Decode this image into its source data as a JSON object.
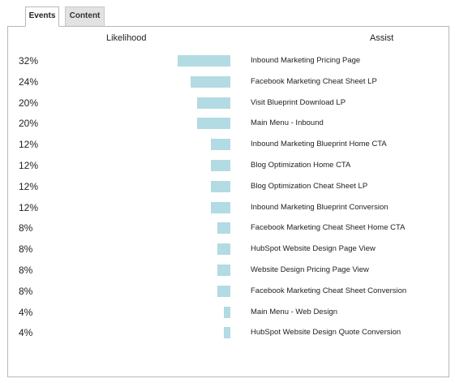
{
  "tabs": [
    {
      "label": "Events",
      "active": true
    },
    {
      "label": "Content",
      "active": false
    }
  ],
  "headers": {
    "likelihood": "Likelihood",
    "assist": "Assist"
  },
  "colors": {
    "bar": "#b2dbe3",
    "border": "#b8b8b8",
    "inactive_tab": "#e2e2e2"
  },
  "rows": [
    {
      "likelihood": "32%",
      "value": 32,
      "event": "Inbound Marketing Pricing Page"
    },
    {
      "likelihood": "24%",
      "value": 24,
      "event": "Facebook Marketing Cheat Sheet LP"
    },
    {
      "likelihood": "20%",
      "value": 20,
      "event": "Visit Blueprint Download LP"
    },
    {
      "likelihood": "20%",
      "value": 20,
      "event": "Main Menu - Inbound"
    },
    {
      "likelihood": "12%",
      "value": 12,
      "event": "Inbound Marketing Blueprint Home CTA"
    },
    {
      "likelihood": "12%",
      "value": 12,
      "event": "Blog Optimization Home CTA"
    },
    {
      "likelihood": "12%",
      "value": 12,
      "event": "Blog Optimization Cheat Sheet LP"
    },
    {
      "likelihood": "12%",
      "value": 12,
      "event": "Inbound Marketing Blueprint Conversion"
    },
    {
      "likelihood": "8%",
      "value": 8,
      "event": "Facebook Marketing Cheat Sheet Home CTA"
    },
    {
      "likelihood": "8%",
      "value": 8,
      "event": "HubSpot Website Design Page View"
    },
    {
      "likelihood": "8%",
      "value": 8,
      "event": "Website Design Pricing Page View"
    },
    {
      "likelihood": "8%",
      "value": 8,
      "event": "Facebook Marketing Cheat Sheet Conversion"
    },
    {
      "likelihood": "4%",
      "value": 4,
      "event": "Main Menu - Web Design"
    },
    {
      "likelihood": "4%",
      "value": 4,
      "event": "HubSpot Website Design Quote Conversion"
    }
  ]
}
